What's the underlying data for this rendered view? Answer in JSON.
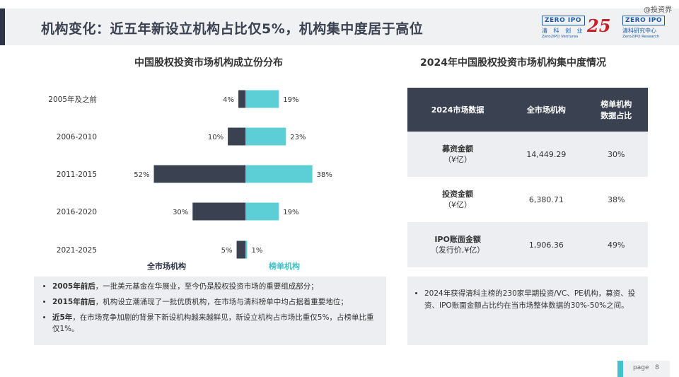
{
  "header": {
    "title": "机构变化：近五年新设立机构占比仅5%，机构集中度居于高位",
    "watermark": "@投资界",
    "logo_left": {
      "box": "ZERO IPO",
      "cn": "清 科 创 业",
      "en": "Zero2IPO Ventures"
    },
    "logo_mid": "25",
    "logo_right": {
      "box": "ZERO IPO",
      "cn": "清科研究中心",
      "en": "Zero2IPO Research"
    }
  },
  "chart_data": {
    "type": "bar",
    "title": "中国股权投资市场机构成立份分布",
    "categories": [
      "2005年及之前",
      "2006-2010",
      "2011-2015",
      "2016-2020",
      "2021-2025"
    ],
    "series": [
      {
        "name": "全市场机构",
        "values": [
          4,
          10,
          52,
          30,
          5
        ],
        "labels": [
          "4%",
          "10%",
          "52%",
          "30%",
          "5%"
        ],
        "color": "#3a4150"
      },
      {
        "name": "榜单机构",
        "values": [
          19,
          23,
          38,
          19,
          1
        ],
        "labels": [
          "19%",
          "23%",
          "38%",
          "19%",
          "1%"
        ],
        "color": "#5ccfd6"
      }
    ]
  },
  "left_notes": [
    {
      "bold": "2005年前后",
      "text": "，一批美元基金在华展业，至今仍是股权投资市场的重要组成部分；"
    },
    {
      "bold": "2015年前后",
      "text": "，机构设立潮涌现了一批优质机构，在市场与清科榜单中均占据着重要地位；"
    },
    {
      "bold": "近5年",
      "text": "，在市场竞争加剧的背景下新设机构越来越鲜见，新设立机构占市场比重仅5%，占榜单比重仅1%。"
    }
  ],
  "table": {
    "title": "2024年中国股权投资市场机构集中度情况",
    "headers": [
      "2024市场数据",
      "全市场机构",
      "榜单机构\n数据占比"
    ],
    "rows": [
      {
        "label": "募资金额",
        "unit": "（¥亿）",
        "value": "14,449.29",
        "pct": "30%"
      },
      {
        "label": "投资金额",
        "unit": "（¥亿）",
        "value": "6,380.71",
        "pct": "38%"
      },
      {
        "label": "IPO账面金额",
        "unit": "（发行价,¥亿）",
        "value": "1,906.36",
        "pct": "49%"
      }
    ]
  },
  "right_note": "2024年获得清科主榜的230家早期投资/VC、PE机构，募资、投资、IPO账面金额占比约在当市场整体数据的30%-50%之间。",
  "footer": {
    "page_label": "page",
    "page_number": "8"
  }
}
